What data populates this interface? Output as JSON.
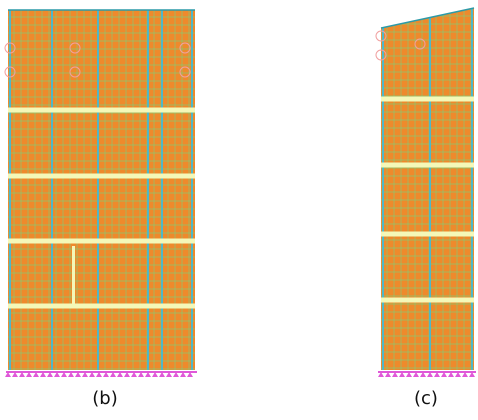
{
  "panels": [
    {
      "id": "b",
      "caption": "(b)"
    },
    {
      "id": "c",
      "caption": "(c)"
    }
  ],
  "colors": {
    "wall_fill": "#ee8a2c",
    "mesh_line": "#7ed17a",
    "beam_band": "#f4f8b8",
    "column_line": "#4fb8c8",
    "edge_line": "#2c9aa8",
    "support_marker": "#e058d8",
    "joint_marker": "#f0a0a0",
    "background": "#ffffff"
  },
  "icons": {
    "support": "pin-support-icon",
    "joint": "joint-circle-icon"
  }
}
